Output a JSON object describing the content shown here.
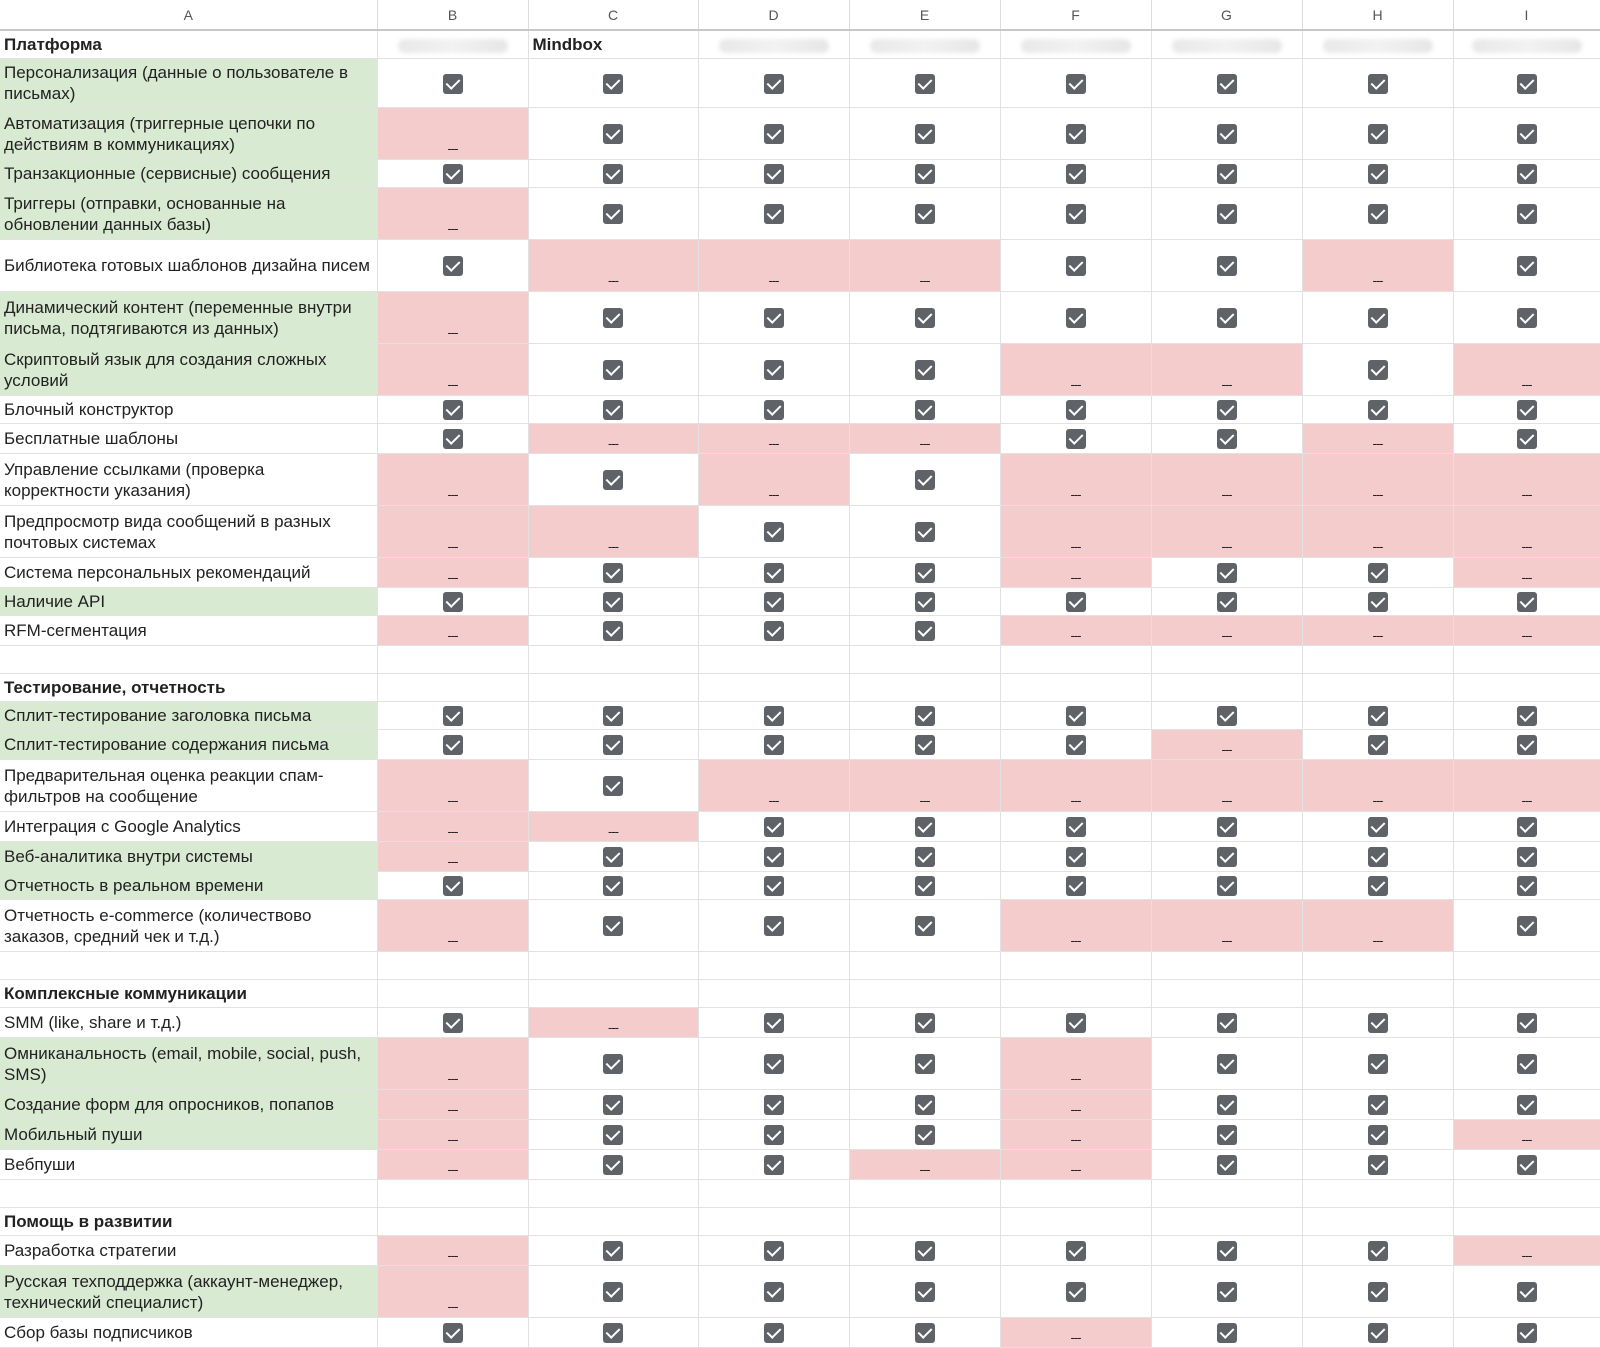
{
  "col_headers": [
    "A",
    "B",
    "C",
    "D",
    "E",
    "F",
    "G",
    "H",
    "I"
  ],
  "vendor_header_b": "",
  "vendor_header_c": "Mindbox",
  "check_icon": "checkbox-checked-icon",
  "colors": {
    "green": "#d9ead3",
    "red": "#f4cccc",
    "check": "#5f6368"
  },
  "rows": [
    {
      "type": "section",
      "label": "Платформа"
    },
    {
      "type": "feature",
      "label": "Персонализация (данные о пользователе в письмах)",
      "green": true,
      "tall": true,
      "values": [
        "✓",
        "✓",
        "✓",
        "✓",
        "✓",
        "✓",
        "✓",
        "✓"
      ]
    },
    {
      "type": "feature",
      "label": "Автоматизация (триггерные цепочки по действиям в коммуникациях)",
      "green": true,
      "tall": true,
      "values": [
        "---",
        "✓",
        "✓",
        "✓",
        "✓",
        "✓",
        "✓",
        "✓"
      ]
    },
    {
      "type": "feature",
      "label": "Транзакционные (сервисные) сообщения",
      "green": true,
      "tall": false,
      "values": [
        "✓",
        "✓",
        "✓",
        "✓",
        "✓",
        "✓",
        "✓",
        "✓"
      ]
    },
    {
      "type": "feature",
      "label": "Триггеры (отправки, основанные на обновлении данных базы)",
      "green": true,
      "tall": true,
      "values": [
        "---",
        "✓",
        "✓",
        "✓",
        "✓",
        "✓",
        "✓",
        "✓"
      ]
    },
    {
      "type": "feature",
      "label": "Библиотека готовых шаблонов дизайна писем",
      "green": false,
      "tall": true,
      "values": [
        "✓",
        "---",
        "---",
        "---",
        "✓",
        "✓",
        "---",
        "✓"
      ]
    },
    {
      "type": "feature",
      "label": "Динамический контент (переменные внутри письма, подтягиваются из данных)",
      "green": true,
      "tall": true,
      "values": [
        "---",
        "✓",
        "✓",
        "✓",
        "✓",
        "✓",
        "✓",
        "✓"
      ]
    },
    {
      "type": "feature",
      "label": "Скриптовый язык для создания сложных условий",
      "green": true,
      "tall": true,
      "values": [
        "---",
        "✓",
        "✓",
        "✓",
        "---",
        "---",
        "✓",
        "---"
      ]
    },
    {
      "type": "feature",
      "label": "Блочный конструктор",
      "green": false,
      "tall": false,
      "values": [
        "✓",
        "✓",
        "✓",
        "✓",
        "✓",
        "✓",
        "✓",
        "✓"
      ]
    },
    {
      "type": "feature",
      "label": "Бесплатные шаблоны",
      "green": false,
      "tall": false,
      "values": [
        "✓",
        "---",
        "---",
        "---",
        "✓",
        "✓",
        "---",
        "✓"
      ]
    },
    {
      "type": "feature",
      "label": "Управление ссылками (проверка корректности указания)",
      "green": false,
      "tall": true,
      "values": [
        "---",
        "✓",
        "---",
        "✓",
        "---",
        "---",
        "---",
        "---"
      ]
    },
    {
      "type": "feature",
      "label": "Предпросмотр вида сообщений в разных почтовых системах",
      "green": false,
      "tall": true,
      "values": [
        "---",
        "---",
        "✓",
        "✓",
        "---",
        "---",
        "---",
        "---"
      ]
    },
    {
      "type": "feature",
      "label": "Система персональных рекомендаций",
      "green": false,
      "tall": false,
      "values": [
        "---",
        "✓",
        "✓",
        "✓",
        "---",
        "✓",
        "✓",
        "---"
      ]
    },
    {
      "type": "feature",
      "label": "Наличие API",
      "green": true,
      "tall": false,
      "values": [
        "✓",
        "✓",
        "✓",
        "✓",
        "✓",
        "✓",
        "✓",
        "✓"
      ]
    },
    {
      "type": "feature",
      "label": "RFM-сегментация",
      "green": false,
      "tall": false,
      "values": [
        "---",
        "✓",
        "✓",
        "✓",
        "---",
        "---",
        "---",
        "---"
      ]
    },
    {
      "type": "empty"
    },
    {
      "type": "section",
      "label": "Тестирование, отчетность"
    },
    {
      "type": "feature",
      "label": "Сплит-тестирование заголовка письма",
      "green": true,
      "tall": false,
      "values": [
        "✓",
        "✓",
        "✓",
        "✓",
        "✓",
        "✓",
        "✓",
        "✓"
      ]
    },
    {
      "type": "feature",
      "label": "Сплит-тестирование содержания письма",
      "green": true,
      "tall": false,
      "values": [
        "✓",
        "✓",
        "✓",
        "✓",
        "✓",
        "---",
        "✓",
        "✓"
      ]
    },
    {
      "type": "feature",
      "label": "Предварительная оценка реакции спам-фильтров на сообщение",
      "green": false,
      "tall": true,
      "values": [
        "---",
        "✓",
        "---",
        "---",
        "---",
        "---",
        "---",
        "---"
      ]
    },
    {
      "type": "feature",
      "label": "Интеграция с Google Analytics",
      "green": false,
      "tall": false,
      "values": [
        "---",
        "---",
        "✓",
        "✓",
        "✓",
        "✓",
        "✓",
        "✓"
      ]
    },
    {
      "type": "feature",
      "label": "Веб-аналитика внутри системы",
      "green": true,
      "tall": false,
      "values": [
        "---",
        "✓",
        "✓",
        "✓",
        "✓",
        "✓",
        "✓",
        "✓"
      ]
    },
    {
      "type": "feature",
      "label": "Отчетность в реальном времени",
      "green": true,
      "tall": false,
      "values": [
        "✓",
        "✓",
        "✓",
        "✓",
        "✓",
        "✓",
        "✓",
        "✓"
      ]
    },
    {
      "type": "feature",
      "label": "Отчетность e-commerce (количествово заказов, средний чек и т.д.)",
      "green": false,
      "tall": true,
      "values": [
        "---",
        "✓",
        "✓",
        "✓",
        "---",
        "---",
        "---",
        "✓"
      ]
    },
    {
      "type": "empty"
    },
    {
      "type": "section",
      "label": "Комплексные коммуникации"
    },
    {
      "type": "feature",
      "label": "SMM (like, share и т.д.)",
      "green": false,
      "tall": false,
      "values": [
        "✓",
        "---",
        "✓",
        "✓",
        "✓",
        "✓",
        "✓",
        "✓"
      ]
    },
    {
      "type": "feature",
      "label": "Омниканальность (email, mobile, social, push, SMS)",
      "green": true,
      "tall": true,
      "values": [
        "---",
        "✓",
        "✓",
        "✓",
        "---",
        "✓",
        "✓",
        "✓"
      ]
    },
    {
      "type": "feature",
      "label": "Создание форм для опросников, попапов",
      "green": true,
      "tall": false,
      "values": [
        "---",
        "✓",
        "✓",
        "✓",
        "---",
        "✓",
        "✓",
        "✓"
      ]
    },
    {
      "type": "feature",
      "label": "Мобильный пуши",
      "green": true,
      "tall": false,
      "values": [
        "---",
        "✓",
        "✓",
        "✓",
        "---",
        "✓",
        "✓",
        "---"
      ]
    },
    {
      "type": "feature",
      "label": "Вебпуши",
      "green": false,
      "tall": false,
      "values": [
        "---",
        "✓",
        "✓",
        "---",
        "---",
        "✓",
        "✓",
        "✓"
      ]
    },
    {
      "type": "empty"
    },
    {
      "type": "section",
      "label": "Помощь в развитии"
    },
    {
      "type": "feature",
      "label": "Разработка стратегии",
      "green": false,
      "tall": false,
      "values": [
        "---",
        "✓",
        "✓",
        "✓",
        "✓",
        "✓",
        "✓",
        "---"
      ]
    },
    {
      "type": "feature",
      "label": "Русская техподдержка (аккаунт-менеджер, технический специалист)",
      "green": true,
      "tall": true,
      "values": [
        "---",
        "✓",
        "✓",
        "✓",
        "✓",
        "✓",
        "✓",
        "✓"
      ]
    },
    {
      "type": "feature",
      "label": "Сбор базы подписчиков",
      "green": false,
      "tall": false,
      "values": [
        "✓",
        "✓",
        "✓",
        "✓",
        "---",
        "✓",
        "✓",
        "✓"
      ]
    }
  ]
}
